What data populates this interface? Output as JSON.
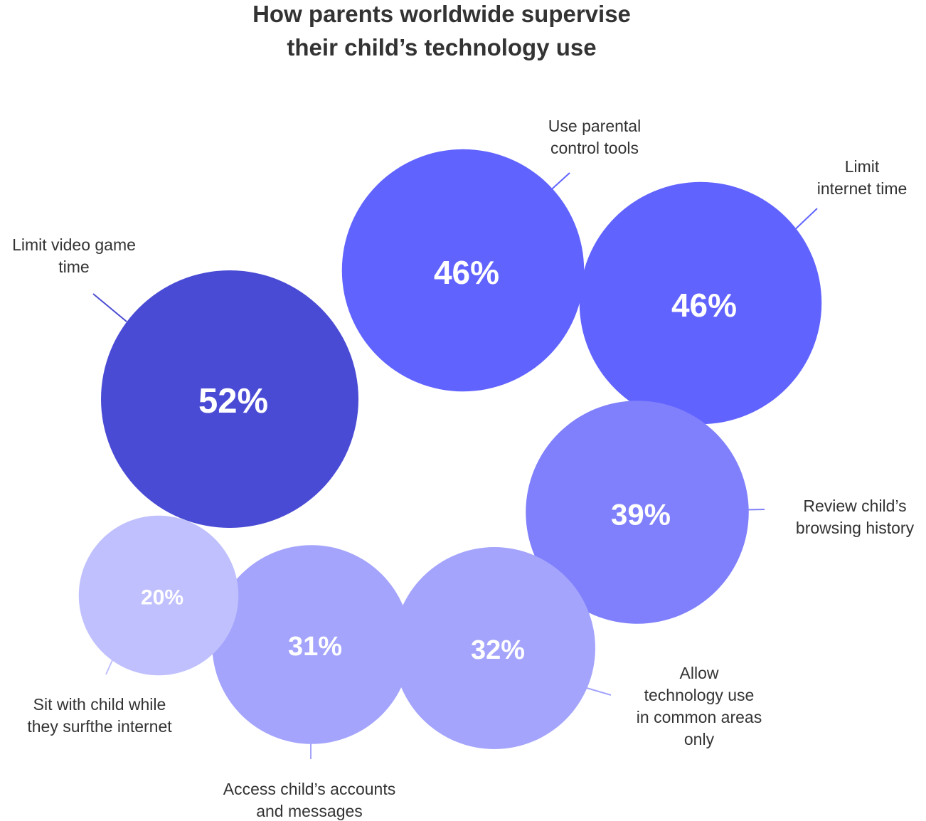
{
  "chart_data": {
    "type": "bubble",
    "title_lines": [
      "How parents worldwide supervise",
      "their child’s technology use"
    ],
    "unit": "%",
    "bubbles": [
      {
        "label_lines": [
          "Limit video game",
          "time"
        ],
        "value": 52,
        "display": "52%",
        "color": "#4a4bd4"
      },
      {
        "label_lines": [
          "Use parental",
          "control tools"
        ],
        "value": 46,
        "display": "46%",
        "color": "#6163ff"
      },
      {
        "label_lines": [
          "Limit",
          "internet time"
        ],
        "value": 46,
        "display": "46%",
        "color": "#6163ff"
      },
      {
        "label_lines": [
          "Review child’s",
          "browsing history"
        ],
        "value": 39,
        "display": "39%",
        "color": "#8080fc"
      },
      {
        "label_lines": [
          "Allow",
          "technology use",
          "in common areas",
          "only"
        ],
        "value": 32,
        "display": "32%",
        "color": "#a4a4fd"
      },
      {
        "label_lines": [
          "Access child’s accounts",
          "and messages"
        ],
        "value": 31,
        "display": "31%",
        "color": "#a4a4fd"
      },
      {
        "label_lines": [
          "Sit with child while",
          "they surfthe internet"
        ],
        "value": 20,
        "display": "20%",
        "color": "#c0c0fe"
      }
    ]
  }
}
